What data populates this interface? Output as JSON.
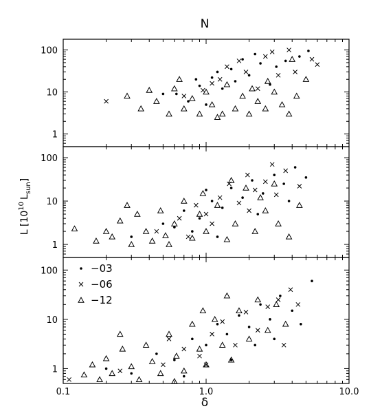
{
  "chart_data": {
    "type": "scatter",
    "title": "N",
    "xlabel": "δ",
    "ylabel_main": "L [10",
    "ylabel_exp": "10",
    "ylabel_unit": "L",
    "ylabel_sub": "sun",
    "ylabel_close": "]",
    "xscale": "log",
    "yscale": "log",
    "xlim": [
      0.1,
      10.0
    ],
    "ylim": [
      0.5,
      180
    ],
    "xticklabels": [
      {
        "value": 0.1,
        "label": "0.1"
      },
      {
        "value": 1.0,
        "label": "1.0"
      },
      {
        "value": 10.0,
        "label": "10.0"
      }
    ],
    "yticklabels": [
      {
        "value": 1,
        "label": "1"
      },
      {
        "value": 10,
        "label": "10"
      },
      {
        "value": 100,
        "label": "100"
      }
    ],
    "legend": {
      "panel": 2,
      "placement": "top-left",
      "entries": [
        {
          "label": "−03",
          "marker": "dot"
        },
        {
          "label": "−06",
          "marker": "cross"
        },
        {
          "label": "−12",
          "marker": "triangle"
        }
      ]
    },
    "panels": [
      {
        "name": "top",
        "series": [
          {
            "marker": "dot",
            "points": [
              [
                0.62,
                9
              ],
              [
                1.1,
                22
              ],
              [
                1.5,
                35
              ],
              [
                2.4,
                48
              ],
              [
                0.9,
                14
              ],
              [
                1.8,
                60
              ],
              [
                3.1,
                40
              ],
              [
                1.3,
                12
              ],
              [
                4.5,
                70
              ],
              [
                0.75,
                6
              ],
              [
                2.0,
                25
              ],
              [
                1.6,
                18
              ],
              [
                5.2,
                95
              ],
              [
                2.8,
                15
              ],
              [
                1.2,
                30
              ],
              [
                0.5,
                9
              ],
              [
                3.6,
                55
              ],
              [
                1.0,
                5
              ],
              [
                2.2,
                80
              ],
              [
                0.85,
                20
              ]
            ]
          },
          {
            "marker": "cross",
            "points": [
              [
                0.2,
                6
              ],
              [
                1.4,
                40
              ],
              [
                2.6,
                70
              ],
              [
                3.8,
                100
              ],
              [
                1.9,
                30
              ],
              [
                5.5,
                60
              ],
              [
                1.1,
                16
              ],
              [
                2.3,
                12
              ],
              [
                6.0,
                45
              ],
              [
                0.95,
                11
              ],
              [
                3.2,
                25
              ],
              [
                1.7,
                55
              ],
              [
                4.2,
                30
              ],
              [
                0.7,
                8
              ],
              [
                2.9,
                90
              ],
              [
                1.25,
                20
              ]
            ]
          },
          {
            "marker": "triangle",
            "points": [
              [
                0.28,
                8
              ],
              [
                0.35,
                4
              ],
              [
                0.45,
                6
              ],
              [
                0.55,
                3
              ],
              [
                0.6,
                12
              ],
              [
                0.7,
                4
              ],
              [
                0.8,
                7
              ],
              [
                0.9,
                3
              ],
              [
                1.0,
                10
              ],
              [
                1.1,
                5
              ],
              [
                1.3,
                3
              ],
              [
                1.4,
                15
              ],
              [
                1.6,
                4
              ],
              [
                1.8,
                8
              ],
              [
                2.0,
                3
              ],
              [
                2.3,
                6
              ],
              [
                2.6,
                4
              ],
              [
                3.0,
                10
              ],
              [
                3.4,
                5
              ],
              [
                3.8,
                3
              ],
              [
                4.3,
                8
              ],
              [
                5.0,
                20
              ],
              [
                4.0,
                60
              ],
              [
                0.4,
                11
              ],
              [
                1.2,
                2.5
              ],
              [
                2.1,
                12
              ],
              [
                0.65,
                20
              ],
              [
                2.7,
                18
              ]
            ]
          }
        ]
      },
      {
        "name": "middle",
        "series": [
          {
            "marker": "dot",
            "points": [
              [
                0.3,
                1.5
              ],
              [
                0.5,
                3
              ],
              [
                0.7,
                6
              ],
              [
                0.9,
                4
              ],
              [
                1.1,
                10
              ],
              [
                1.3,
                7
              ],
              [
                1.5,
                20
              ],
              [
                1.8,
                12
              ],
              [
                2.1,
                30
              ],
              [
                2.5,
                15
              ],
              [
                3.0,
                40
              ],
              [
                3.5,
                25
              ],
              [
                4.2,
                60
              ],
              [
                5.0,
                35
              ],
              [
                0.8,
                2
              ],
              [
                1.2,
                1.5
              ],
              [
                2.3,
                5
              ],
              [
                1.0,
                18
              ],
              [
                0.6,
                2.5
              ],
              [
                3.8,
                10
              ]
            ]
          },
          {
            "marker": "cross",
            "points": [
              [
                0.45,
                2
              ],
              [
                0.65,
                4
              ],
              [
                0.85,
                8
              ],
              [
                1.0,
                5
              ],
              [
                1.25,
                12
              ],
              [
                1.45,
                25
              ],
              [
                1.7,
                9
              ],
              [
                1.95,
                40
              ],
              [
                2.2,
                18
              ],
              [
                2.6,
                28
              ],
              [
                3.1,
                14
              ],
              [
                3.6,
                50
              ],
              [
                4.5,
                22
              ],
              [
                1.1,
                3
              ],
              [
                2.0,
                6
              ],
              [
                0.75,
                1.5
              ],
              [
                2.9,
                70
              ]
            ]
          },
          {
            "marker": "triangle",
            "points": [
              [
                0.12,
                2.3
              ],
              [
                0.17,
                1.2
              ],
              [
                0.2,
                2
              ],
              [
                0.22,
                1.5
              ],
              [
                0.25,
                3.5
              ],
              [
                0.3,
                1
              ],
              [
                0.33,
                5
              ],
              [
                0.38,
                2
              ],
              [
                0.42,
                1.2
              ],
              [
                0.48,
                6
              ],
              [
                0.52,
                1.6
              ],
              [
                0.6,
                3
              ],
              [
                0.7,
                10
              ],
              [
                0.8,
                1.4
              ],
              [
                0.9,
                5
              ],
              [
                1.0,
                2
              ],
              [
                1.2,
                8
              ],
              [
                1.4,
                1.3
              ],
              [
                1.6,
                3
              ],
              [
                1.9,
                20
              ],
              [
                2.2,
                2
              ],
              [
                2.6,
                6
              ],
              [
                3.2,
                3
              ],
              [
                3.8,
                1.5
              ],
              [
                4.5,
                8
              ],
              [
                0.28,
                8
              ],
              [
                0.95,
                15
              ],
              [
                1.5,
                30
              ],
              [
                2.4,
                12
              ],
              [
                3.0,
                25
              ],
              [
                0.55,
                1
              ]
            ]
          }
        ]
      },
      {
        "name": "bottom",
        "series": [
          {
            "marker": "dot",
            "points": [
              [
                0.2,
                1
              ],
              [
                0.3,
                0.8
              ],
              [
                0.45,
                2
              ],
              [
                0.6,
                1.5
              ],
              [
                0.8,
                4
              ],
              [
                1.0,
                3
              ],
              [
                1.2,
                8
              ],
              [
                1.4,
                5
              ],
              [
                1.7,
                12
              ],
              [
                2.0,
                7
              ],
              [
                2.4,
                20
              ],
              [
                2.8,
                10
              ],
              [
                3.3,
                30
              ],
              [
                4.0,
                15
              ],
              [
                5.5,
                60
              ],
              [
                0.7,
                0.7
              ],
              [
                1.5,
                1.5
              ],
              [
                3.0,
                4
              ],
              [
                2.2,
                3
              ],
              [
                4.6,
                8
              ]
            ]
          },
          {
            "marker": "cross",
            "points": [
              [
                0.11,
                0.6
              ],
              [
                0.25,
                0.9
              ],
              [
                0.5,
                1.2
              ],
              [
                0.7,
                2.5
              ],
              [
                0.9,
                1.8
              ],
              [
                1.1,
                5
              ],
              [
                1.3,
                9
              ],
              [
                1.6,
                3
              ],
              [
                1.9,
                14
              ],
              [
                2.3,
                6
              ],
              [
                2.7,
                18
              ],
              [
                3.2,
                25
              ],
              [
                3.9,
                40
              ],
              [
                4.4,
                20
              ],
              [
                1.0,
                1.2
              ],
              [
                0.55,
                4
              ],
              [
                3.5,
                3
              ]
            ]
          },
          {
            "marker": "triangle",
            "points": [
              [
                0.14,
                0.75
              ],
              [
                0.16,
                1.2
              ],
              [
                0.18,
                0.6
              ],
              [
                0.2,
                1.6
              ],
              [
                0.22,
                0.8
              ],
              [
                0.26,
                2.5
              ],
              [
                0.3,
                1.1
              ],
              [
                0.34,
                0.6
              ],
              [
                0.38,
                3
              ],
              [
                0.42,
                1.4
              ],
              [
                0.48,
                0.8
              ],
              [
                0.55,
                5
              ],
              [
                0.62,
                1.8
              ],
              [
                0.7,
                0.9
              ],
              [
                0.8,
                8
              ],
              [
                0.9,
                2.5
              ],
              [
                1.0,
                1.2
              ],
              [
                1.15,
                10
              ],
              [
                1.3,
                3
              ],
              [
                1.5,
                1.5
              ],
              [
                1.7,
                15
              ],
              [
                2.0,
                4
              ],
              [
                2.3,
                25
              ],
              [
                2.7,
                6
              ],
              [
                3.1,
                20
              ],
              [
                3.6,
                8
              ],
              [
                0.25,
                5
              ],
              [
                0.95,
                15
              ],
              [
                1.4,
                30
              ],
              [
                0.6,
                0.55
              ]
            ]
          }
        ]
      }
    ]
  }
}
